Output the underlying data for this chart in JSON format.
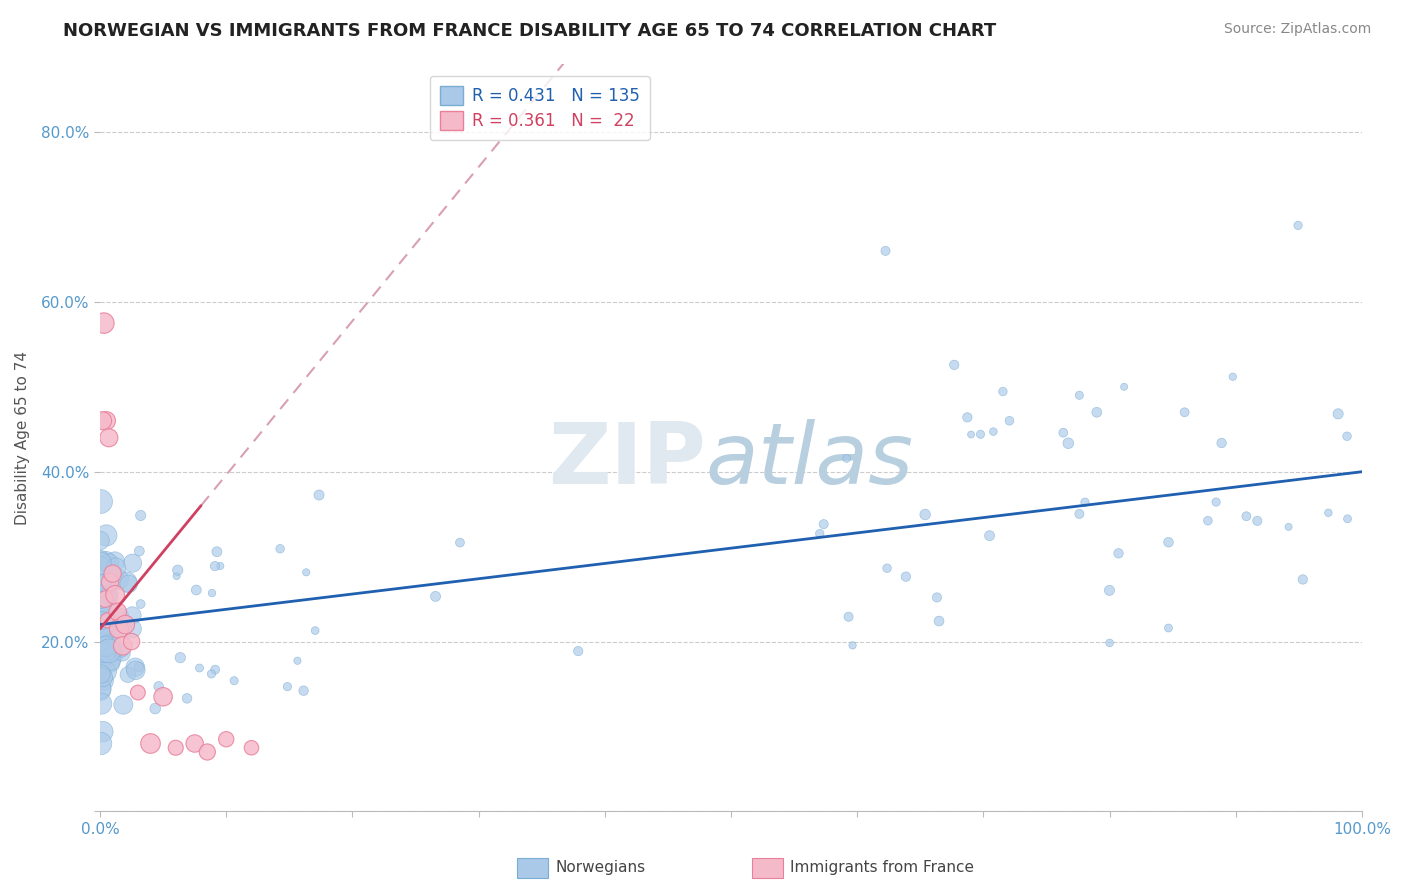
{
  "title": "NORWEGIAN VS IMMIGRANTS FROM FRANCE DISABILITY AGE 65 TO 74 CORRELATION CHART",
  "source": "Source: ZipAtlas.com",
  "ylabel": "Disability Age 65 to 74",
  "xlim": [
    0.0,
    1.0
  ],
  "ylim": [
    0.0,
    0.88
  ],
  "xtick_positions": [
    0.0,
    0.1,
    0.2,
    0.3,
    0.4,
    0.5,
    0.6,
    0.7,
    0.8,
    0.9,
    1.0
  ],
  "xticklabels": [
    "0.0%",
    "",
    "",
    "",
    "",
    "",
    "",
    "",
    "",
    "",
    "100.0%"
  ],
  "ytick_positions": [
    0.0,
    0.2,
    0.4,
    0.6,
    0.8
  ],
  "yticklabels": [
    "",
    "20.0%",
    "40.0%",
    "60.0%",
    "80.0%"
  ],
  "norwegian_color": "#aac9e8",
  "norwegian_edge": "#7aadd4",
  "france_color": "#f5baca",
  "france_edge": "#e8809a",
  "trend_norwegian_color": "#2060b0",
  "trend_france_color": "#d04060",
  "trend_france_dash_color": "#d8a0b0",
  "background_color": "#ffffff",
  "grid_color": "#cccccc",
  "tick_color": "#5599cc",
  "watermark_zip_color": "#e0e8f0",
  "watermark_atlas_color": "#b8cfe0"
}
